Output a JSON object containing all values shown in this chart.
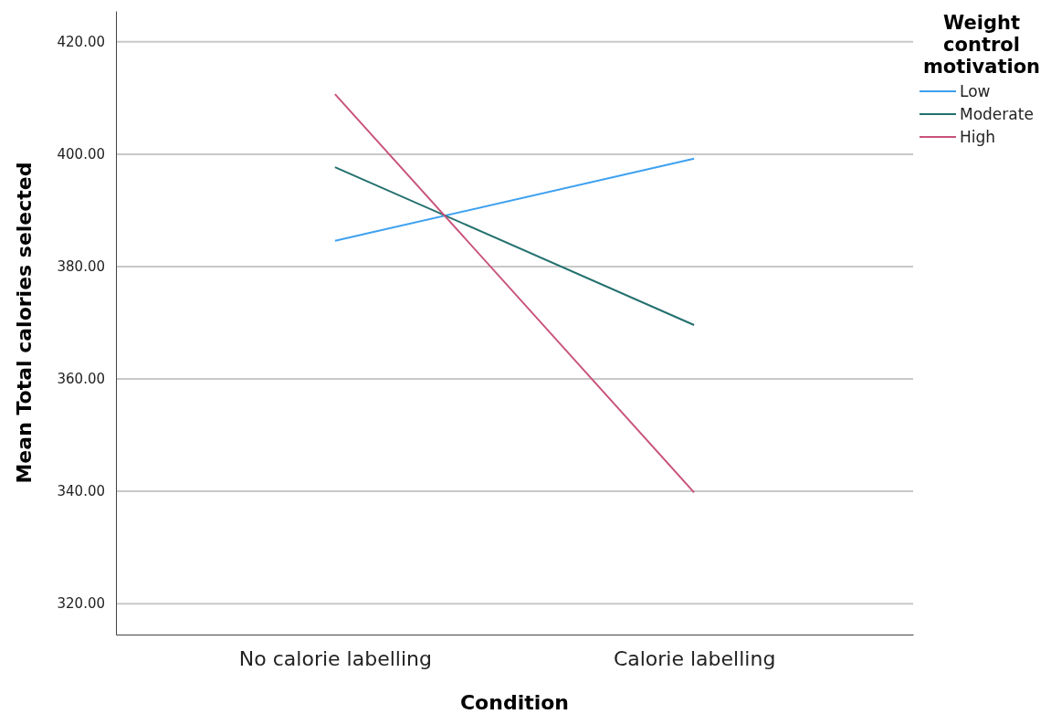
{
  "chart_data": {
    "type": "line",
    "xlabel": "Condition",
    "ylabel": "Mean Total calories selected",
    "legend_title": "Weight control motivation",
    "categories": [
      "No calorie labelling",
      "Calorie labelling"
    ],
    "series": [
      {
        "name": "Low",
        "color": "#3ea1f0",
        "values": [
          384.6,
          399.2
        ]
      },
      {
        "name": "Moderate",
        "color": "#23706e",
        "values": [
          397.7,
          369.6
        ]
      },
      {
        "name": "High",
        "color": "#c8547a",
        "values": [
          410.7,
          339.8
        ]
      }
    ],
    "ylim": [
      314.5,
      425.5
    ],
    "yticks": [
      {
        "value": 320,
        "label": "320.00"
      },
      {
        "value": 340,
        "label": "340.00"
      },
      {
        "value": 360,
        "label": "360.00"
      },
      {
        "value": 380,
        "label": "380.00"
      },
      {
        "value": 400,
        "label": "400.00"
      },
      {
        "value": 420,
        "label": "420.00"
      }
    ],
    "grid": "y",
    "legend": "top right",
    "marker": "none",
    "line_style": "solid"
  }
}
